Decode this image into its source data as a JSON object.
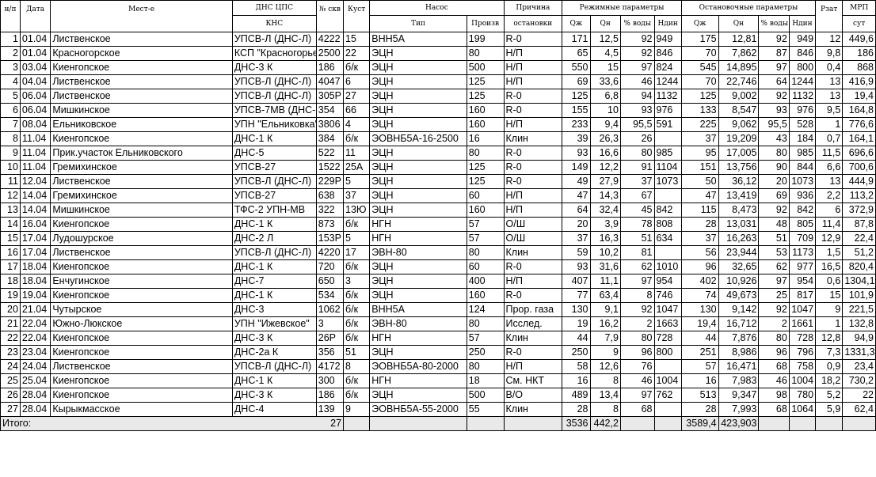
{
  "headers": {
    "np": "н/п",
    "date": "Дата",
    "field": "Мест-е",
    "dns_top": "ДНС ЦПС",
    "dns_bottom": "КНС",
    "well": "№ скв",
    "cluster": "Куст",
    "pump": "Насос",
    "pump_type": "Тип",
    "pump_prod": "Произв",
    "reason_top": "Причина",
    "reason_bottom": "остановки",
    "mode_params": "Режимные параметры",
    "stop_params": "Остановочные параметры",
    "qzh": "Qж",
    "qn": "Qн",
    "water": "% воды",
    "hdin": "Hдин",
    "pzat": "Рзат",
    "mrp_top": "МРП",
    "mrp_bottom": "сут"
  },
  "rows": [
    [
      "1",
      "01.04",
      "Лиственское",
      "УПСВ-Л (ДНС-Л)",
      "4222",
      "15",
      "ВНН5А",
      "199",
      "R-0",
      "171",
      "12,5",
      "92",
      "949",
      "175",
      "12,81",
      "92",
      "949",
      "12",
      "449,6"
    ],
    [
      "2",
      "01.04",
      "Красногорское",
      "КСП \"Красногорье\"",
      "2500",
      "22",
      "ЭЦН",
      "80",
      "Н/П",
      "65",
      "4,5",
      "92",
      "846",
      "70",
      "7,862",
      "87",
      "846",
      "9,8",
      "186"
    ],
    [
      "3",
      "03.04",
      "Киенгопское",
      "ДНС-3 К",
      "186",
      "б/к",
      "ЭЦН",
      "500",
      "Н/П",
      "550",
      "15",
      "97",
      "824",
      "545",
      "14,895",
      "97",
      "800",
      "0,4",
      "868"
    ],
    [
      "4",
      "04.04",
      "Лиственское",
      "УПСВ-Л (ДНС-Л)",
      "4047",
      "6",
      "ЭЦН",
      "125",
      "Н/П",
      "69",
      "33,6",
      "46",
      "1244",
      "70",
      "22,746",
      "64",
      "1244",
      "13",
      "416,9"
    ],
    [
      "5",
      "06.04",
      "Лиственское",
      "УПСВ-Л (ДНС-Л)",
      "305Р",
      "27",
      "ЭЦН",
      "125",
      "R-0",
      "125",
      "6,8",
      "94",
      "1132",
      "125",
      "9,002",
      "92",
      "1132",
      "13",
      "19,4"
    ],
    [
      "6",
      "06.04",
      "Мишкинское",
      "УПСВ-7МВ (ДНС-7)",
      "354",
      "66",
      "ЭЦН",
      "160",
      "R-0",
      "155",
      "10",
      "93",
      "976",
      "133",
      "8,547",
      "93",
      "976",
      "9,5",
      "164,8"
    ],
    [
      "7",
      "08.04",
      "Ельниковское",
      "УПН \"Ельниковка\"",
      "3806",
      "4",
      "ЭЦН",
      "160",
      "Н/П",
      "233",
      "9,4",
      "95,5",
      "591",
      "225",
      "9,062",
      "95,5",
      "528",
      "1",
      "776,6"
    ],
    [
      "8",
      "11.04",
      "Киенгопское",
      "ДНС-1 К",
      "384",
      "б/к",
      "ЭОВНБ5А-16-2500",
      "16",
      "Клин",
      "39",
      "26,3",
      "26",
      "",
      "37",
      "19,209",
      "43",
      "184",
      "0,7",
      "164,1"
    ],
    [
      "9",
      "11.04",
      "Прик.участок Ельниковского",
      "ДНС-5",
      "522",
      "11",
      "ЭЦН",
      "80",
      "R-0",
      "93",
      "16,6",
      "80",
      "985",
      "95",
      "17,005",
      "80",
      "985",
      "11,5",
      "696,6"
    ],
    [
      "10",
      "11.04",
      "Гремихинское",
      "УПСВ-27",
      "1522",
      "25А",
      "ЭЦН",
      "125",
      "R-0",
      "149",
      "12,2",
      "91",
      "1104",
      "151",
      "13,756",
      "90",
      "844",
      "6,6",
      "700,6"
    ],
    [
      "11",
      "12.04",
      "Лиственское",
      "УПСВ-Л (ДНС-Л)",
      "229Р",
      "5",
      "ЭЦН",
      "125",
      "R-0",
      "49",
      "27,9",
      "37",
      "1073",
      "50",
      "36,12",
      "20",
      "1073",
      "13",
      "444,9"
    ],
    [
      "12",
      "14.04",
      "Гремихинское",
      "УПСВ-27",
      "638",
      "37",
      "ЭЦН",
      "60",
      "Н/П",
      "47",
      "14,3",
      "67",
      "",
      "47",
      "13,419",
      "69",
      "936",
      "2,2",
      "113,2"
    ],
    [
      "13",
      "14.04",
      "Мишкинское",
      "ТФС-2 УПН-МВ",
      "322",
      "13Ю",
      "ЭЦН",
      "160",
      "Н/П",
      "64",
      "32,4",
      "45",
      "842",
      "115",
      "8,473",
      "92",
      "842",
      "6",
      "372,9"
    ],
    [
      "14",
      "16.04",
      "Киенгопское",
      "ДНС-1 К",
      "873",
      "б/к",
      "НГН",
      "57",
      "О/Ш",
      "20",
      "3,9",
      "78",
      "808",
      "28",
      "13,031",
      "48",
      "805",
      "11,4",
      "87,8"
    ],
    [
      "15",
      "17.04",
      "Лудошурское",
      "ДНС-2 Л",
      "153Р",
      "5",
      "НГН",
      "57",
      "О/Ш",
      "37",
      "16,3",
      "51",
      "634",
      "37",
      "16,263",
      "51",
      "709",
      "12,9",
      "22,4"
    ],
    [
      "16",
      "17.04",
      "Лиственское",
      "УПСВ-Л (ДНС-Л)",
      "4220",
      "17",
      "ЭВН-80",
      "80",
      "Клин",
      "59",
      "10,2",
      "81",
      "",
      "56",
      "23,944",
      "53",
      "1173",
      "1,5",
      "51,2"
    ],
    [
      "17",
      "18.04",
      "Киенгопское",
      "ДНС-1 К",
      "720",
      "б/к",
      "ЭЦН",
      "60",
      "R-0",
      "93",
      "31,6",
      "62",
      "1010",
      "96",
      "32,65",
      "62",
      "977",
      "16,5",
      "820,4"
    ],
    [
      "18",
      "18.04",
      "Енчугинское",
      "ДНС-7",
      "650",
      "3",
      "ЭЦН",
      "400",
      "Н/П",
      "407",
      "11,1",
      "97",
      "954",
      "402",
      "10,926",
      "97",
      "954",
      "0,6",
      "1304,1"
    ],
    [
      "19",
      "19.04",
      "Киенгопское",
      "ДНС-1 К",
      "534",
      "б/к",
      "ЭЦН",
      "160",
      "R-0",
      "77",
      "63,4",
      "8",
      "746",
      "74",
      "49,673",
      "25",
      "817",
      "15",
      "101,9"
    ],
    [
      "20",
      "21.04",
      "Чутырское",
      "ДНС-3",
      "1062",
      "б/к",
      "ВНН5А",
      "124",
      "Прор. газа",
      "130",
      "9,1",
      "92",
      "1047",
      "130",
      "9,142",
      "92",
      "1047",
      "9",
      "221,5"
    ],
    [
      "21",
      "22.04",
      "Южно-Люкское",
      "УПН \"Ижевское\"",
      "3",
      "б/к",
      "ЭВН-80",
      "80",
      "Исслед.",
      "19",
      "16,2",
      "2",
      "1663",
      "19,4",
      "16,712",
      "2",
      "1661",
      "1",
      "132,8"
    ],
    [
      "22",
      "22.04",
      "Киенгопское",
      "ДНС-3 К",
      "26Р",
      "б/к",
      "НГН",
      "57",
      "Клин",
      "44",
      "7,9",
      "80",
      "728",
      "44",
      "7,876",
      "80",
      "728",
      "12,8",
      "94,9"
    ],
    [
      "23",
      "23.04",
      "Киенгопское",
      "ДНС-2а К",
      "356",
      "51",
      "ЭЦН",
      "250",
      "R-0",
      "250",
      "9",
      "96",
      "800",
      "251",
      "8,986",
      "96",
      "796",
      "7,3",
      "1331,3"
    ],
    [
      "24",
      "24.04",
      "Лиственское",
      "УПСВ-Л (ДНС-Л)",
      "4172",
      "8",
      "ЭОВНБ5А-80-2000",
      "80",
      "Н/П",
      "58",
      "12,6",
      "76",
      "",
      "57",
      "16,471",
      "68",
      "758",
      "0,9",
      "23,4"
    ],
    [
      "25",
      "25.04",
      "Киенгопское",
      "ДНС-1 К",
      "300",
      "б/к",
      "НГН",
      "18",
      "См. НКТ",
      "16",
      "8",
      "46",
      "1004",
      "16",
      "7,983",
      "46",
      "1004",
      "18,2",
      "730,2"
    ],
    [
      "26",
      "28.04",
      "Киенгопское",
      "ДНС-3 К",
      "186",
      "б/к",
      "ЭЦН",
      "500",
      "В/О",
      "489",
      "13,4",
      "97",
      "762",
      "513",
      "9,347",
      "98",
      "780",
      "5,2",
      "22"
    ],
    [
      "27",
      "28.04",
      "Кырыкмасское",
      "ДНС-4",
      "139",
      "9",
      "ЭОВНБ5А-55-2000",
      "55",
      "Клин",
      "28",
      "8",
      "68",
      "",
      "28",
      "7,993",
      "68",
      "1064",
      "5,9",
      "62,4"
    ]
  ],
  "total": {
    "label": "Итого:",
    "count": "27",
    "qzh": "3536",
    "qn": "442,2",
    "stop_qzh": "3589,4",
    "stop_qn": "423,903"
  }
}
